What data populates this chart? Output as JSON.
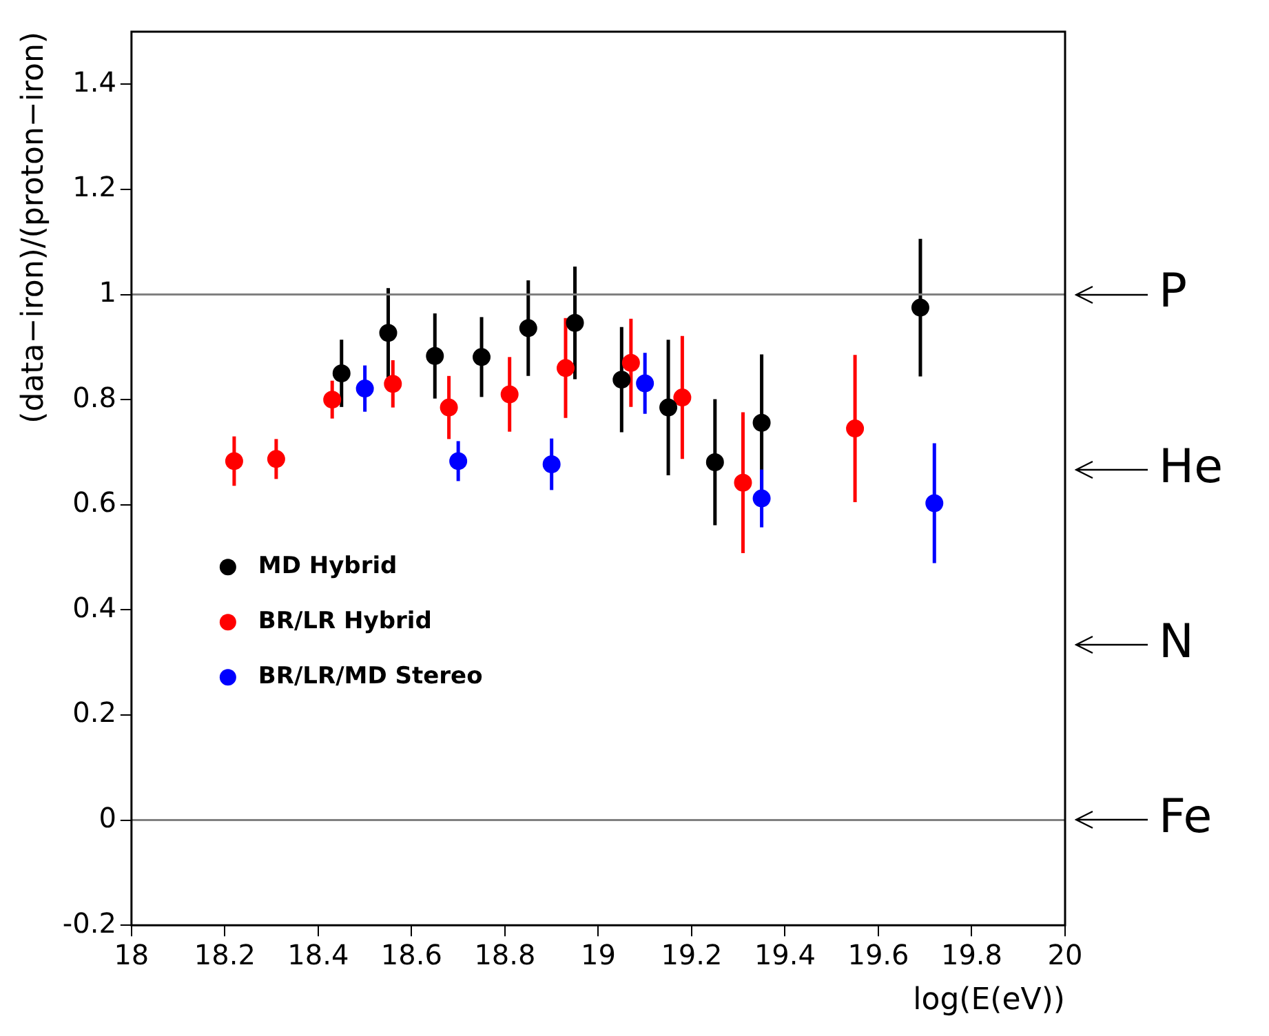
{
  "chart_data": {
    "type": "scatter",
    "xlabel": "log(E(eV))",
    "ylabel": "(data−iron)/(proton−iron)",
    "xlim": [
      18,
      20
    ],
    "xticks": [
      18,
      18.2,
      18.4,
      18.6,
      18.8,
      19,
      19.2,
      19.4,
      19.6,
      19.8,
      20
    ],
    "ylim": [
      -0.2,
      1.5
    ],
    "yticks": [
      -0.2,
      0,
      0.2,
      0.4,
      0.6,
      0.8,
      1,
      1.2,
      1.4
    ],
    "grid": false,
    "legend": "bottom left",
    "marker": "circle",
    "ref_lines": [
      {
        "axis": "y",
        "value": 1,
        "label": "P",
        "color": "#808080"
      },
      {
        "axis": "y",
        "value": 0,
        "label": "Fe",
        "color": "#808080"
      }
    ],
    "annotations": [
      "He",
      "N"
    ],
    "series": [
      {
        "name": "MD Hybrid",
        "color": "#000000",
        "x": [
          18.45,
          18.55,
          18.65,
          18.75,
          18.85,
          18.95,
          19.05,
          19.15,
          19.25,
          19.35,
          19.69
        ],
        "values": [
          0.85,
          0.927,
          0.883,
          0.881,
          0.936,
          0.946,
          0.838,
          0.785,
          0.681,
          0.756,
          0.975
        ],
        "errors": [
          0.064,
          0.085,
          0.081,
          0.076,
          0.091,
          0.107,
          0.1,
          0.129,
          0.12,
          0.13,
          0.131
        ]
      },
      {
        "name": "BR/LR Hybrid",
        "color": "#ff0000",
        "x": [
          18.22,
          18.31,
          18.43,
          18.56,
          18.68,
          18.81,
          18.93,
          19.07,
          19.18,
          19.31,
          19.55
        ],
        "values": [
          0.683,
          0.687,
          0.8,
          0.83,
          0.785,
          0.81,
          0.86,
          0.87,
          0.804,
          0.642,
          0.745
        ],
        "errors": [
          0.047,
          0.038,
          0.036,
          0.045,
          0.06,
          0.071,
          0.095,
          0.084,
          0.117,
          0.134,
          0.14
        ]
      },
      {
        "name": "BR/LR/MD Stereo",
        "color": "#0000ff",
        "x": [
          18.5,
          18.7,
          18.9,
          19.1,
          19.35,
          19.72
        ],
        "values": [
          0.821,
          0.683,
          0.677,
          0.831,
          0.612,
          0.603
        ],
        "errors": [
          0.044,
          0.038,
          0.049,
          0.058,
          0.055,
          0.114
        ]
      }
    ]
  }
}
